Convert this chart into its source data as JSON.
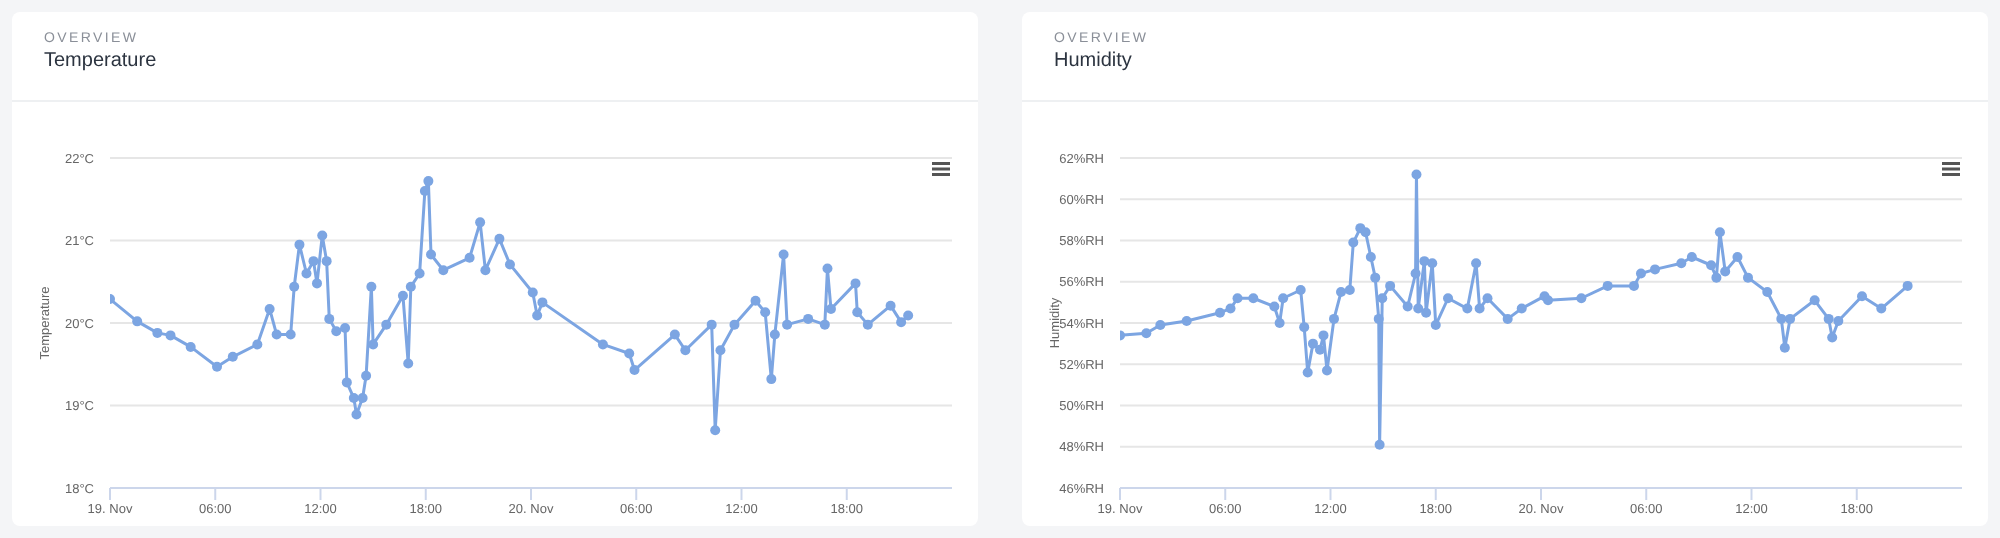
{
  "chart_data": [
    {
      "type": "line",
      "subtitle": "OVERVIEW",
      "title": "Temperature",
      "ylabel": "Temperature",
      "grid": "y",
      "marker": "circle",
      "line_style": "solid",
      "legend": false,
      "xlim": [
        "--11-19T00:00",
        "--11-21T00:00"
      ],
      "xticks": [
        {
          "value": "--11-19T00:00",
          "label": "19. Nov"
        },
        {
          "value": "--11-19T06:00",
          "label": "06:00"
        },
        {
          "value": "--11-19T12:00",
          "label": "12:00"
        },
        {
          "value": "--11-19T18:00",
          "label": "18:00"
        },
        {
          "value": "--11-20T00:00",
          "label": "20. Nov"
        },
        {
          "value": "--11-20T06:00",
          "label": "06:00"
        },
        {
          "value": "--11-20T12:00",
          "label": "12:00"
        },
        {
          "value": "--11-20T18:00",
          "label": "18:00"
        }
      ],
      "ylim": [
        18,
        22
      ],
      "yticks": [
        {
          "value": 18,
          "label": "18°C"
        },
        {
          "value": 19,
          "label": "19°C"
        },
        {
          "value": 20,
          "label": "20°C"
        },
        {
          "value": 21,
          "label": "21°C"
        },
        {
          "value": 22,
          "label": "22°C"
        }
      ],
      "x": [
        "--11-19T00:00",
        "--11-19T01:33",
        "--11-19T02:42",
        "--11-19T03:27",
        "--11-19T04:36",
        "--11-19T06:06",
        "--11-19T07:00",
        "--11-19T08:24",
        "--11-19T09:06",
        "--11-19T09:30",
        "--11-19T10:18",
        "--11-19T10:30",
        "--11-19T10:48",
        "--11-19T11:12",
        "--11-19T11:36",
        "--11-19T11:48",
        "--11-19T12:06",
        "--11-19T12:21",
        "--11-19T12:30",
        "--11-19T12:54",
        "--11-19T13:24",
        "--11-19T13:30",
        "--11-19T13:54",
        "--11-19T14:03",
        "--11-19T14:24",
        "--11-19T14:36",
        "--11-19T14:54",
        "--11-19T15:00",
        "--11-19T15:45",
        "--11-19T16:42",
        "--11-19T17:00",
        "--11-19T17:09",
        "--11-19T17:39",
        "--11-19T17:57",
        "--11-19T18:09",
        "--11-19T18:18",
        "--11-19T19:00",
        "--11-19T20:30",
        "--11-19T21:06",
        "--11-19T21:24",
        "--11-19T22:12",
        "--11-19T22:48",
        "--11-20T00:06",
        "--11-20T00:21",
        "--11-20T00:39",
        "--11-20T04:06",
        "--11-20T05:36",
        "--11-20T05:54",
        "--11-20T08:12",
        "--11-20T08:48",
        "--11-20T10:18",
        "--11-20T10:30",
        "--11-20T10:48",
        "--11-20T11:36",
        "--11-20T12:48",
        "--11-20T13:21",
        "--11-20T13:42",
        "--11-20T13:54",
        "--11-20T14:24",
        "--11-20T14:36",
        "--11-20T15:48",
        "--11-20T16:45",
        "--11-20T16:54",
        "--11-20T17:06",
        "--11-20T18:30",
        "--11-20T18:36",
        "--11-20T19:12",
        "--11-20T20:30",
        "--11-20T21:06",
        "--11-20T21:30"
      ],
      "series": [
        {
          "color": "#7ca5e2",
          "values": [
            20.29,
            20.02,
            19.88,
            19.85,
            19.71,
            19.47,
            19.59,
            19.74,
            20.17,
            19.86,
            19.86,
            20.44,
            20.95,
            20.6,
            20.75,
            20.48,
            21.06,
            20.75,
            20.05,
            19.9,
            19.94,
            19.28,
            19.09,
            18.89,
            19.09,
            19.36,
            20.44,
            19.74,
            19.98,
            20.33,
            19.51,
            20.44,
            20.6,
            21.6,
            21.72,
            20.83,
            20.64,
            20.79,
            21.22,
            20.64,
            21.02,
            20.71,
            20.37,
            20.09,
            20.25,
            19.74,
            19.63,
            19.43,
            19.86,
            19.67,
            19.98,
            18.7,
            19.67,
            19.98,
            20.27,
            20.13,
            19.32,
            19.86,
            20.83,
            19.98,
            20.05,
            19.98,
            20.66,
            20.17,
            20.48,
            20.13,
            19.98,
            20.21,
            20.01,
            20.09
          ]
        }
      ]
    },
    {
      "type": "line",
      "subtitle": "OVERVIEW",
      "title": "Humidity",
      "ylabel": "Humidity",
      "grid": "y",
      "marker": "circle",
      "line_style": "solid",
      "legend": false,
      "xlim": [
        "--11-19T00:00",
        "--11-21T00:00"
      ],
      "xticks": [
        {
          "value": "--11-19T00:00",
          "label": "19. Nov"
        },
        {
          "value": "--11-19T06:00",
          "label": "06:00"
        },
        {
          "value": "--11-19T12:00",
          "label": "12:00"
        },
        {
          "value": "--11-19T18:00",
          "label": "18:00"
        },
        {
          "value": "--11-20T00:00",
          "label": "20. Nov"
        },
        {
          "value": "--11-20T06:00",
          "label": "06:00"
        },
        {
          "value": "--11-20T12:00",
          "label": "12:00"
        },
        {
          "value": "--11-20T18:00",
          "label": "18:00"
        }
      ],
      "ylim": [
        46,
        62
      ],
      "yticks": [
        {
          "value": 46,
          "label": "46%RH"
        },
        {
          "value": 48,
          "label": "48%RH"
        },
        {
          "value": 50,
          "label": "50%RH"
        },
        {
          "value": 52,
          "label": "52%RH"
        },
        {
          "value": 54,
          "label": "54%RH"
        },
        {
          "value": 56,
          "label": "56%RH"
        },
        {
          "value": 58,
          "label": "58%RH"
        },
        {
          "value": 60,
          "label": "60%RH"
        },
        {
          "value": 62,
          "label": "62%RH"
        }
      ],
      "x": [
        "--11-19T00:00",
        "--11-19T01:30",
        "--11-19T02:18",
        "--11-19T03:48",
        "--11-19T05:42",
        "--11-19T06:18",
        "--11-19T06:42",
        "--11-19T07:36",
        "--11-19T08:48",
        "--11-19T09:06",
        "--11-19T09:18",
        "--11-19T10:18",
        "--11-19T10:30",
        "--11-19T10:42",
        "--11-19T11:00",
        "--11-19T11:24",
        "--11-19T11:36",
        "--11-19T11:48",
        "--11-19T12:12",
        "--11-19T12:36",
        "--11-19T13:06",
        "--11-19T13:18",
        "--11-19T13:42",
        "--11-19T14:00",
        "--11-19T14:18",
        "--11-19T14:33",
        "--11-19T14:45",
        "--11-19T14:48",
        "--11-19T14:57",
        "--11-19T15:24",
        "--11-19T16:24",
        "--11-19T16:51",
        "--11-19T16:54",
        "--11-19T17:00",
        "--11-19T17:21",
        "--11-19T17:27",
        "--11-19T17:48",
        "--11-19T18:00",
        "--11-19T18:42",
        "--11-19T19:48",
        "--11-19T20:18",
        "--11-19T20:30",
        "--11-19T20:57",
        "--11-19T22:06",
        "--11-19T22:54",
        "--11-20T00:12",
        "--11-20T00:24",
        "--11-20T02:18",
        "--11-20T03:48",
        "--11-20T05:18",
        "--11-20T05:42",
        "--11-20T06:30",
        "--11-20T08:00",
        "--11-20T08:36",
        "--11-20T09:42",
        "--11-20T10:00",
        "--11-20T10:12",
        "--11-20T10:30",
        "--11-20T11:12",
        "--11-20T11:48",
        "--11-20T12:54",
        "--11-20T13:42",
        "--11-20T13:54",
        "--11-20T14:12",
        "--11-20T15:36",
        "--11-20T16:24",
        "--11-20T16:36",
        "--11-20T16:57",
        "--11-20T18:18",
        "--11-20T19:24",
        "--11-20T20:54"
      ],
      "series": [
        {
          "color": "#7ca5e2",
          "values": [
            53.4,
            53.5,
            53.9,
            54.1,
            54.5,
            54.7,
            55.2,
            55.2,
            54.8,
            54.0,
            55.2,
            55.6,
            53.8,
            51.6,
            53.0,
            52.7,
            53.4,
            51.7,
            54.2,
            55.5,
            55.6,
            57.9,
            58.6,
            58.4,
            57.2,
            56.2,
            54.2,
            48.1,
            55.2,
            55.8,
            54.8,
            56.4,
            61.2,
            54.7,
            57.0,
            54.5,
            56.9,
            53.9,
            55.2,
            54.7,
            56.9,
            54.7,
            55.2,
            54.2,
            54.7,
            55.3,
            55.1,
            55.2,
            55.8,
            55.8,
            56.4,
            56.6,
            56.9,
            57.2,
            56.8,
            56.2,
            58.4,
            56.5,
            57.2,
            56.2,
            55.5,
            54.2,
            52.8,
            54.2,
            55.1,
            54.2,
            53.3,
            54.1,
            55.3,
            54.7,
            55.8
          ]
        }
      ]
    }
  ]
}
